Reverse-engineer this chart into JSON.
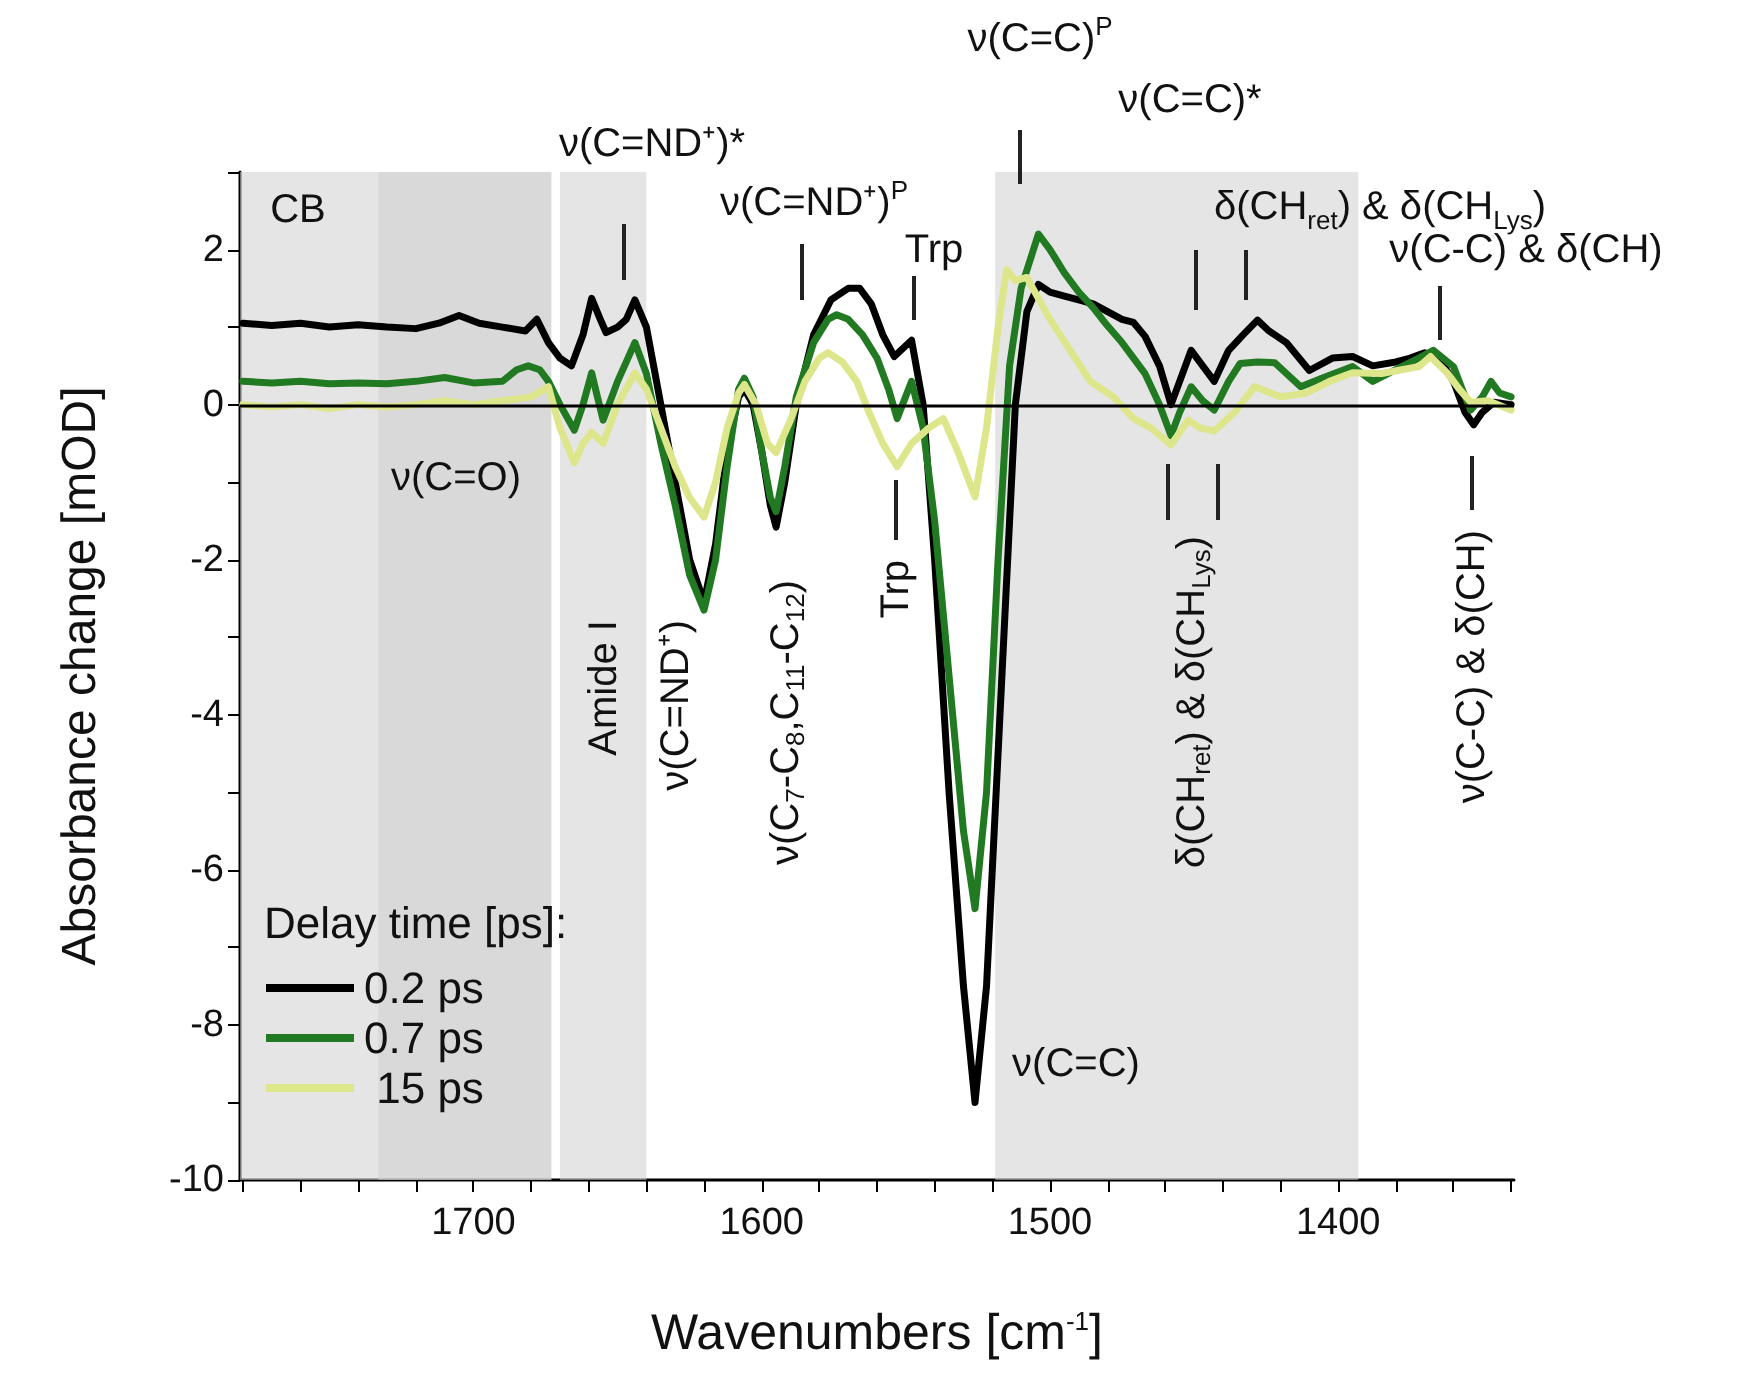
{
  "chart_data": {
    "type": "line",
    "xlabel": "Wavenumbers [cm$^{-1}$]",
    "ylabel": "Absorbance change [mOD]",
    "legend_title": "Delay time [ps]:",
    "legend": "bottom left",
    "marker": "none",
    "line_style": "solid",
    "xlim": [
      1781,
      1339
    ],
    "ylim": [
      -10,
      3
    ],
    "xticks": [
      {
        "value": 1780,
        "label": null
      },
      {
        "value": 1760,
        "label": null
      },
      {
        "value": 1740,
        "label": null
      },
      {
        "value": 1720,
        "label": null
      },
      1700,
      {
        "value": 1680,
        "label": null
      },
      {
        "value": 1660,
        "label": null
      },
      {
        "value": 1640,
        "label": null
      },
      {
        "value": 1620,
        "label": null
      },
      1600,
      {
        "value": 1580,
        "label": null
      },
      {
        "value": 1560,
        "label": null
      },
      {
        "value": 1540,
        "label": null
      },
      {
        "value": 1520,
        "label": null
      },
      1500,
      {
        "value": 1480,
        "label": null
      },
      {
        "value": 1460,
        "label": null
      },
      {
        "value": 1440,
        "label": null
      },
      {
        "value": 1420,
        "label": null
      },
      1400,
      {
        "value": 1380,
        "label": null
      },
      {
        "value": 1360,
        "label": null
      },
      {
        "value": 1340,
        "label": null
      }
    ],
    "yticks": [
      -10,
      {
        "value": -9,
        "label": null
      },
      -8,
      {
        "value": -7,
        "label": null
      },
      -6,
      {
        "value": -5,
        "label": null
      },
      -4,
      {
        "value": -3,
        "label": null
      },
      -2,
      {
        "value": -1,
        "label": null
      },
      0,
      {
        "value": 1,
        "label": null
      },
      2,
      {
        "value": 3,
        "label": null
      }
    ],
    "bands": [
      {
        "axis": "x",
        "from": 1781,
        "to": 1673,
        "color": "#d0d0d0"
      },
      {
        "axis": "x",
        "from": 1733,
        "to": 1673,
        "color": "#d0d0d0"
      },
      {
        "axis": "x",
        "from": 1670,
        "to": 1640,
        "color": "#d0d0d0"
      },
      {
        "axis": "x",
        "from": 1519,
        "to": 1393,
        "color": "#d0d0d0"
      }
    ],
    "ref_lines": [
      {
        "axis": "y",
        "value": 0,
        "color": "#000000"
      }
    ],
    "series": [
      {
        "name": "0.2 ps",
        "color": "#000000",
        "x": [
          1780,
          1770,
          1760,
          1750,
          1740,
          1730,
          1720,
          1712,
          1705,
          1698,
          1690,
          1682,
          1678,
          1674,
          1670,
          1666,
          1662,
          1659,
          1656,
          1654,
          1650,
          1647,
          1644,
          1640,
          1635,
          1630,
          1625,
          1620,
          1616,
          1612,
          1608,
          1606,
          1603,
          1600,
          1597,
          1595,
          1592,
          1588,
          1582,
          1576,
          1570,
          1566,
          1562,
          1558,
          1554,
          1548,
          1544,
          1540,
          1535,
          1530,
          1526,
          1522,
          1518,
          1514,
          1512,
          1508,
          1504,
          1500,
          1495,
          1490,
          1485,
          1480,
          1475,
          1471,
          1467,
          1462,
          1458,
          1455,
          1451,
          1447,
          1443,
          1438,
          1433,
          1428,
          1424,
          1418,
          1410,
          1402,
          1395,
          1388,
          1380,
          1375,
          1370,
          1365,
          1360,
          1356,
          1353,
          1350,
          1346,
          1340
        ],
        "values": [
          1.05,
          1.02,
          1.05,
          1.0,
          1.03,
          1.0,
          0.98,
          1.05,
          1.15,
          1.05,
          1.0,
          0.95,
          1.1,
          0.8,
          0.6,
          0.5,
          0.9,
          1.37,
          1.1,
          0.93,
          1.0,
          1.1,
          1.35,
          1.0,
          0.0,
          -1.0,
          -2.0,
          -2.55,
          -1.8,
          -0.6,
          0.1,
          0.2,
          0.0,
          -0.6,
          -1.3,
          -1.58,
          -1.0,
          0.0,
          0.9,
          1.35,
          1.5,
          1.5,
          1.3,
          0.9,
          0.62,
          0.83,
          0.0,
          -2.0,
          -5.0,
          -7.5,
          -9.0,
          -7.5,
          -4.5,
          -1.5,
          0.0,
          1.2,
          1.55,
          1.45,
          1.4,
          1.35,
          1.3,
          1.2,
          1.1,
          1.06,
          0.88,
          0.5,
          0.0,
          0.3,
          0.7,
          0.5,
          0.3,
          0.7,
          0.9,
          1.09,
          0.95,
          0.8,
          0.44,
          0.6,
          0.62,
          0.5,
          0.55,
          0.6,
          0.67,
          0.6,
          0.3,
          -0.1,
          -0.26,
          -0.1,
          0.03,
          0.0
        ]
      },
      {
        "name": "0.7 ps",
        "color": "#217a21",
        "x": [
          1780,
          1770,
          1760,
          1750,
          1740,
          1730,
          1720,
          1710,
          1700,
          1690,
          1685,
          1681,
          1677,
          1674,
          1670,
          1665,
          1662,
          1659,
          1657,
          1655,
          1650,
          1644,
          1640,
          1635,
          1630,
          1625,
          1620,
          1616,
          1612,
          1608,
          1606,
          1603,
          1600,
          1597,
          1595,
          1592,
          1588,
          1582,
          1577,
          1574,
          1570,
          1565,
          1560,
          1556,
          1553,
          1548,
          1544,
          1540,
          1535,
          1530,
          1526,
          1522,
          1518,
          1514,
          1510,
          1504,
          1500,
          1495,
          1490,
          1485,
          1481,
          1475,
          1467,
          1462,
          1458,
          1455,
          1451,
          1447,
          1443,
          1438,
          1434,
          1428,
          1422,
          1413,
          1405,
          1395,
          1388,
          1380,
          1372,
          1367,
          1360,
          1357,
          1354,
          1350,
          1347,
          1344,
          1340
        ],
        "values": [
          0.3,
          0.28,
          0.3,
          0.27,
          0.28,
          0.27,
          0.3,
          0.35,
          0.28,
          0.3,
          0.45,
          0.5,
          0.45,
          0.3,
          0.0,
          -0.33,
          0.0,
          0.41,
          0.1,
          -0.2,
          0.3,
          0.8,
          0.4,
          -0.5,
          -1.3,
          -2.2,
          -2.65,
          -2.0,
          -0.8,
          0.2,
          0.34,
          0.1,
          -0.6,
          -1.2,
          -1.38,
          -0.8,
          0.1,
          0.8,
          1.1,
          1.16,
          1.1,
          0.9,
          0.6,
          0.2,
          -0.18,
          0.3,
          -0.3,
          -1.5,
          -3.5,
          -5.5,
          -6.5,
          -5.0,
          -2.0,
          0.5,
          1.5,
          2.2,
          2.0,
          1.7,
          1.45,
          1.25,
          1.06,
          0.8,
          0.4,
          0.0,
          -0.4,
          -0.1,
          0.23,
          0.05,
          -0.07,
          0.3,
          0.53,
          0.55,
          0.54,
          0.23,
          0.35,
          0.49,
          0.3,
          0.45,
          0.6,
          0.7,
          0.49,
          0.2,
          -0.07,
          0.1,
          0.3,
          0.15,
          0.1
        ]
      },
      {
        "name": " 15 ps",
        "color": "#dde68a",
        "x": [
          1780,
          1770,
          1760,
          1750,
          1740,
          1730,
          1720,
          1710,
          1700,
          1690,
          1680,
          1674,
          1670,
          1665,
          1662,
          1659,
          1655,
          1650,
          1644,
          1640,
          1635,
          1630,
          1625,
          1620,
          1616,
          1612,
          1608,
          1606,
          1602,
          1598,
          1595,
          1590,
          1585,
          1580,
          1577,
          1572,
          1567,
          1563,
          1558,
          1553,
          1548,
          1542,
          1537,
          1532,
          1526,
          1522,
          1518,
          1515,
          1512,
          1508,
          1500,
          1493,
          1486,
          1478,
          1471,
          1465,
          1458,
          1452,
          1448,
          1443,
          1436,
          1429,
          1420,
          1411,
          1403,
          1395,
          1385,
          1378,
          1372,
          1368,
          1362,
          1358,
          1354,
          1348,
          1340
        ],
        "values": [
          0.0,
          -0.03,
          0.0,
          -0.05,
          0.0,
          -0.03,
          0.0,
          0.05,
          0.0,
          0.05,
          0.1,
          0.23,
          -0.3,
          -0.75,
          -0.5,
          -0.36,
          -0.5,
          0.0,
          0.41,
          0.2,
          -0.3,
          -0.8,
          -1.2,
          -1.45,
          -1.0,
          -0.3,
          0.15,
          0.26,
          0.0,
          -0.5,
          -0.62,
          -0.2,
          0.3,
          0.6,
          0.67,
          0.55,
          0.3,
          -0.08,
          -0.5,
          -0.8,
          -0.5,
          -0.3,
          -0.18,
          -0.6,
          -1.19,
          -0.3,
          1.0,
          1.74,
          1.6,
          1.64,
          1.1,
          0.7,
          0.3,
          0.1,
          -0.18,
          -0.3,
          -0.52,
          -0.2,
          -0.3,
          -0.34,
          -0.1,
          0.23,
          0.1,
          0.15,
          0.3,
          0.41,
          0.4,
          0.45,
          0.49,
          0.62,
          0.4,
          0.2,
          0.03,
          0.05,
          -0.07
        ]
      }
    ],
    "annotations": [
      "CB",
      "ν(C=O)",
      "Amide I",
      "ν(C=ND⁺)*",
      "ν(C=ND⁺)$^{P}$",
      "Trp",
      "ν(C=C)$^{P}$",
      "ν(C=C)*",
      "δ(CH$_{ret}$) & δ(CH$_{Lys}$)",
      "ν(C-C) & δ(CH)",
      "ν(C=ND⁺)",
      "ν(C$_{7}$-C$_{8}$,C$_{11}$-C$_{12}$)",
      "Trp",
      "ν(C=C)",
      "δ(CH$_{ret}$) & δ(CH$_{Lys}$)",
      "ν(C-C) & δ(CH)"
    ]
  }
}
